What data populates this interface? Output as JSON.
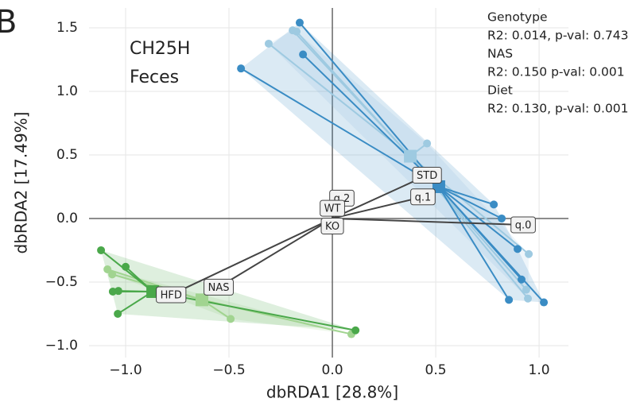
{
  "chart_data": {
    "type": "scatter",
    "panel_label": "B",
    "annotations": [
      "CH25H",
      "Feces"
    ],
    "xlabel": "dbRDA1 [28.8%]",
    "ylabel": "dbRDA2 [17.49%]",
    "stats": [
      "Genotype",
      "R2: 0.014, p-val: 0.743",
      "NAS",
      "R2: 0.150 p-val: 0.001",
      "Diet",
      "R2: 0.130, p-val: 0.001"
    ],
    "xlim": [
      -1.177,
      1.142
    ],
    "ylim": [
      -1.094,
      1.656
    ],
    "xticks": [
      {
        "value": -1.0,
        "label": "−1.0"
      },
      {
        "value": -0.5,
        "label": "−0.5"
      },
      {
        "value": 0,
        "label": "0.0"
      },
      0.5,
      {
        "value": 1.0,
        "label": "1.0"
      }
    ],
    "yticks": [
      {
        "value": -1.0,
        "label": "−1.0"
      },
      {
        "value": -0.5,
        "label": "−0.5"
      },
      {
        "value": 0,
        "label": "0.0"
      },
      0.5,
      {
        "value": 1.0,
        "label": "1.0"
      },
      1.5
    ],
    "grid": true,
    "series": [
      {
        "color": "#9ecae1",
        "x": [
          -0.308,
          -0.192,
          -0.173,
          0.458,
          0.95,
          0.938,
          0.946
        ],
        "values": [
          1.375,
          1.48,
          1.47,
          0.59,
          -0.28,
          -0.56,
          -0.63
        ],
        "centroid": [
          0.377,
          0.49
        ]
      },
      {
        "color": "#3a8cc4",
        "x": [
          -0.158,
          -0.142,
          -0.442,
          0.781,
          0.819,
          0.896,
          0.915,
          0.854,
          1.023
        ],
        "values": [
          1.54,
          1.29,
          1.18,
          0.11,
          0.0,
          -0.24,
          -0.48,
          -0.64,
          -0.66
        ],
        "centroid": [
          0.515,
          0.25
        ]
      },
      {
        "color": "#a1d490",
        "x": [
          -1.088,
          -1.065,
          -0.492,
          0.092
        ],
        "values": [
          -0.4,
          -0.44,
          -0.79,
          -0.91
        ],
        "centroid": [
          -0.631,
          -0.64
        ]
      },
      {
        "color": "#4aa84a",
        "x": [
          -1.119,
          -1.0,
          -1.062,
          -1.035,
          -1.038,
          0.112
        ],
        "values": [
          -0.25,
          -0.38,
          -0.575,
          -0.57,
          -0.75,
          -0.88
        ],
        "centroid": [
          -0.869,
          -0.575
        ]
      }
    ],
    "biplot": [
      {
        "label": "STD",
        "x": 0.458,
        "y": 0.34
      },
      {
        "label": "q.1",
        "x": 0.438,
        "y": 0.17
      },
      {
        "label": "q.2",
        "x": 0.046,
        "y": 0.16
      },
      {
        "label": "WT",
        "x": 0.0,
        "y": 0.08
      },
      {
        "label": "KO",
        "x": 0.0,
        "y": -0.06
      },
      {
        "label": "q.0",
        "x": 0.923,
        "y": -0.05
      },
      {
        "label": "NAS",
        "x": -0.55,
        "y": -0.54
      },
      {
        "label": "HFD",
        "x": -0.78,
        "y": -0.6
      }
    ]
  }
}
